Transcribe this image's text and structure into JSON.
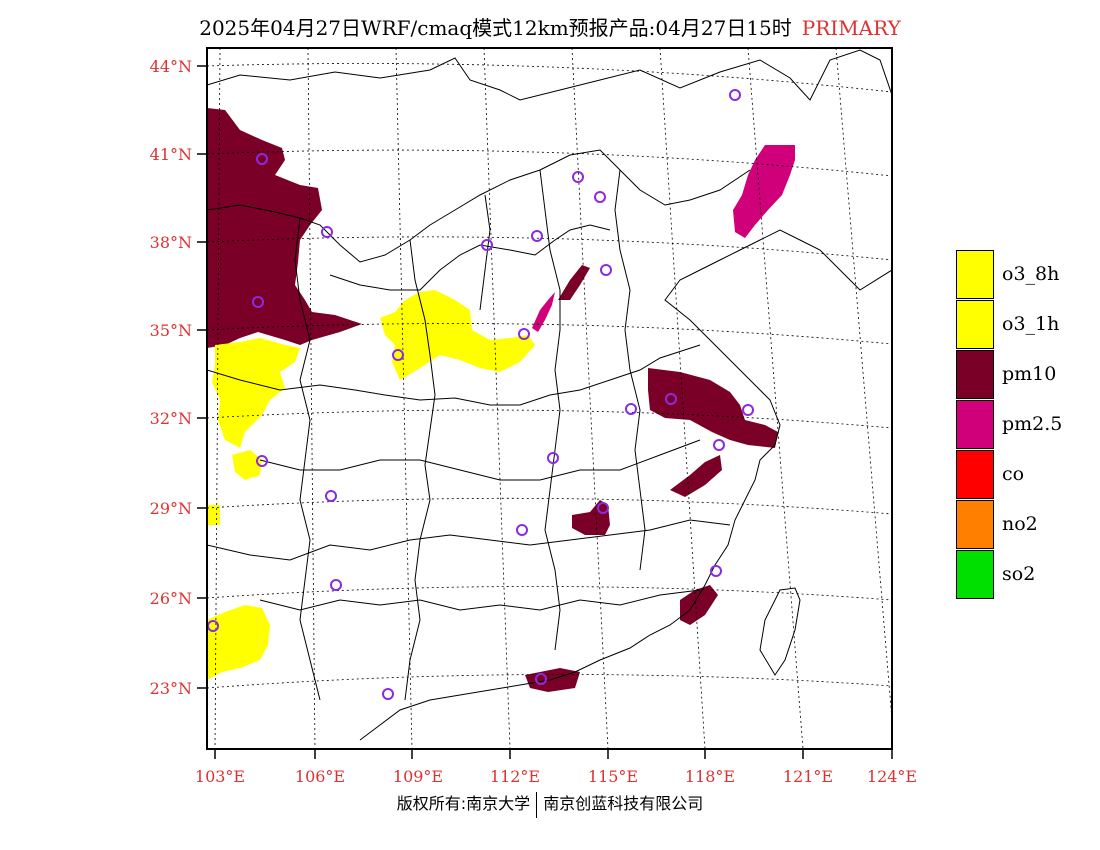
{
  "title": {
    "main": "2025年04月27日WRF/cmaq模式12km预报产品:04月27日15时",
    "tag": "PRIMARY"
  },
  "axes": {
    "lat_labels": [
      "44°N",
      "41°N",
      "38°N",
      "35°N",
      "32°N",
      "29°N",
      "26°N",
      "23°N"
    ],
    "lon_labels": [
      "103°E",
      "106°E",
      "109°E",
      "112°E",
      "115°E",
      "118°E",
      "121°E",
      "124°E"
    ]
  },
  "legend": {
    "items": [
      {
        "label": "o3_8h",
        "color": "#ffff00"
      },
      {
        "label": "o3_1h",
        "color": "#ffff00"
      },
      {
        "label": "pm10",
        "color": "#7a0028"
      },
      {
        "label": "pm2.5",
        "color": "#d0007a"
      },
      {
        "label": "co",
        "color": "#ff0000"
      },
      {
        "label": "no2",
        "color": "#ff7f00"
      },
      {
        "label": "so2",
        "color": "#00e000"
      }
    ]
  },
  "footer": {
    "left": "版权所有:南京大学",
    "right": "南京创蓝科技有限公司"
  },
  "colors": {
    "axis_label": "#e03030",
    "station_marker": "#8a2be2"
  }
}
